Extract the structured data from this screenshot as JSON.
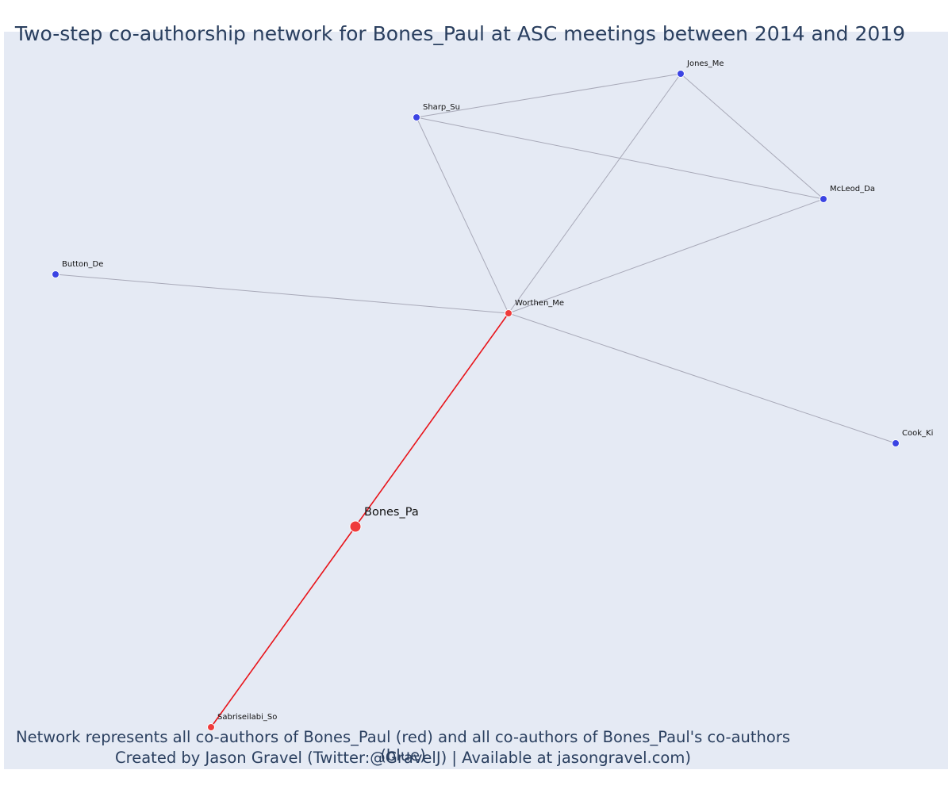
{
  "title": "Two-step co-authorship network for Bones_Paul at ASC meetings between 2014 and 2019",
  "caption_line_1": "Network represents all co-authors of Bones_Paul (red) and all co-authors of Bones_Paul's co-authors (blue)",
  "caption_line_2": "Created by Jason Gravel (Twitter:@GravelJ) | Available at jasongravel.com)",
  "colors": {
    "background": "#e5eaf4",
    "coauthor_red": "#ef3b3b",
    "second_step_blue": "#3b44e3",
    "edge_red": "#e8141a",
    "edge_gray": "#a8a9b8"
  },
  "nodes": [
    {
      "id": "Bones_Pa",
      "label": "Bones_Pa",
      "group": "focal"
    },
    {
      "id": "Worthen_Me",
      "label": "Worthen_Me",
      "group": "coauthor"
    },
    {
      "id": "Sabriseilabi_So",
      "label": "Sabriseilabi_So",
      "group": "coauthor"
    },
    {
      "id": "Jones_Me",
      "label": "Jones_Me",
      "group": "second_step"
    },
    {
      "id": "Sharp_Su",
      "label": "Sharp_Su",
      "group": "second_step"
    },
    {
      "id": "McLeod_Da",
      "label": "McLeod_Da",
      "group": "second_step"
    },
    {
      "id": "Button_De",
      "label": "Button_De",
      "group": "second_step"
    },
    {
      "id": "Cook_Ki",
      "label": "Cook_Ki",
      "group": "second_step"
    }
  ],
  "edges": [
    {
      "source": "Bones_Pa",
      "target": "Worthen_Me",
      "type": "direct"
    },
    {
      "source": "Bones_Pa",
      "target": "Sabriseilabi_So",
      "type": "direct"
    },
    {
      "source": "Worthen_Me",
      "target": "Sharp_Su",
      "type": "indirect"
    },
    {
      "source": "Worthen_Me",
      "target": "Jones_Me",
      "type": "indirect"
    },
    {
      "source": "Worthen_Me",
      "target": "McLeod_Da",
      "type": "indirect"
    },
    {
      "source": "Worthen_Me",
      "target": "Button_De",
      "type": "indirect"
    },
    {
      "source": "Worthen_Me",
      "target": "Cook_Ki",
      "type": "indirect"
    },
    {
      "source": "Sharp_Su",
      "target": "Jones_Me",
      "type": "indirect"
    },
    {
      "source": "Sharp_Su",
      "target": "McLeod_Da",
      "type": "indirect"
    },
    {
      "source": "Jones_Me",
      "target": "McLeod_Da",
      "type": "indirect"
    }
  ]
}
